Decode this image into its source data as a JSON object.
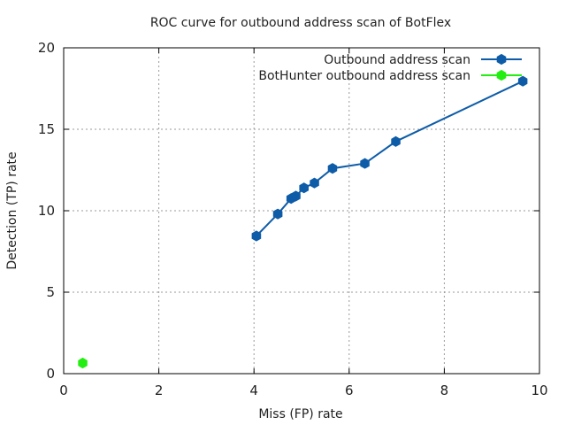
{
  "chart_data": {
    "type": "line",
    "title": "ROC curve for outbound address scan of BotFlex",
    "xlabel": "Miss (FP) rate",
    "ylabel": "Detection (TP) rate",
    "xlim": [
      0,
      10
    ],
    "ylim": [
      0,
      20
    ],
    "x_ticks": [
      "0",
      "2",
      "4",
      "6",
      "8",
      "10"
    ],
    "y_ticks": [
      "0",
      "5",
      "10",
      "15",
      "20"
    ],
    "grid": true,
    "legend_position": "top-right",
    "series": [
      {
        "name": "Outbound address scan",
        "color": "#0e5ca8",
        "markers": true,
        "points": [
          {
            "x": 4.05,
            "y": 8.45
          },
          {
            "x": 4.5,
            "y": 9.8
          },
          {
            "x": 4.78,
            "y": 10.75
          },
          {
            "x": 4.88,
            "y": 10.9
          },
          {
            "x": 5.05,
            "y": 11.4
          },
          {
            "x": 5.27,
            "y": 11.7
          },
          {
            "x": 5.65,
            "y": 12.6
          },
          {
            "x": 6.33,
            "y": 12.9
          },
          {
            "x": 6.98,
            "y": 14.25
          },
          {
            "x": 9.65,
            "y": 17.95
          }
        ]
      },
      {
        "name": "BotHunter outbound address scan",
        "color": "#22ee11",
        "markers": true,
        "points": [
          {
            "x": 0.4,
            "y": 0.65
          }
        ]
      }
    ]
  }
}
